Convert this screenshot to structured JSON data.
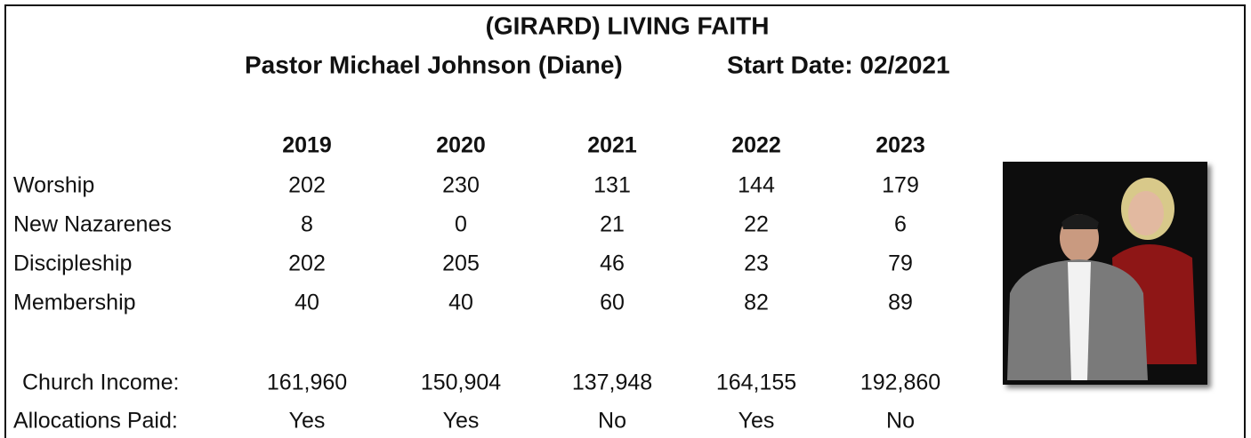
{
  "header": {
    "title": "(GIRARD) LIVING FAITH",
    "pastor": "Pastor Michael Johnson (Diane)",
    "start_date": "Start Date: 02/2021"
  },
  "table": {
    "columns": [
      "2019",
      "2020",
      "2021",
      "2022",
      "2023"
    ],
    "rows": [
      [
        "Worship",
        "202",
        "230",
        "131",
        "144",
        "179"
      ],
      [
        "New Nazarenes",
        "8",
        "0",
        "21",
        "22",
        "6"
      ],
      [
        "Discipleship",
        "202",
        "205",
        "46",
        "23",
        "79"
      ],
      [
        "Membership",
        "40",
        "40",
        "60",
        "82",
        "89"
      ],
      [
        "Church Income:",
        "161,960",
        "150,904",
        "137,948",
        "164,155",
        "192,860"
      ],
      [
        "Allocations Paid:",
        "Yes",
        "Yes",
        "No",
        "Yes",
        "No"
      ]
    ]
  }
}
